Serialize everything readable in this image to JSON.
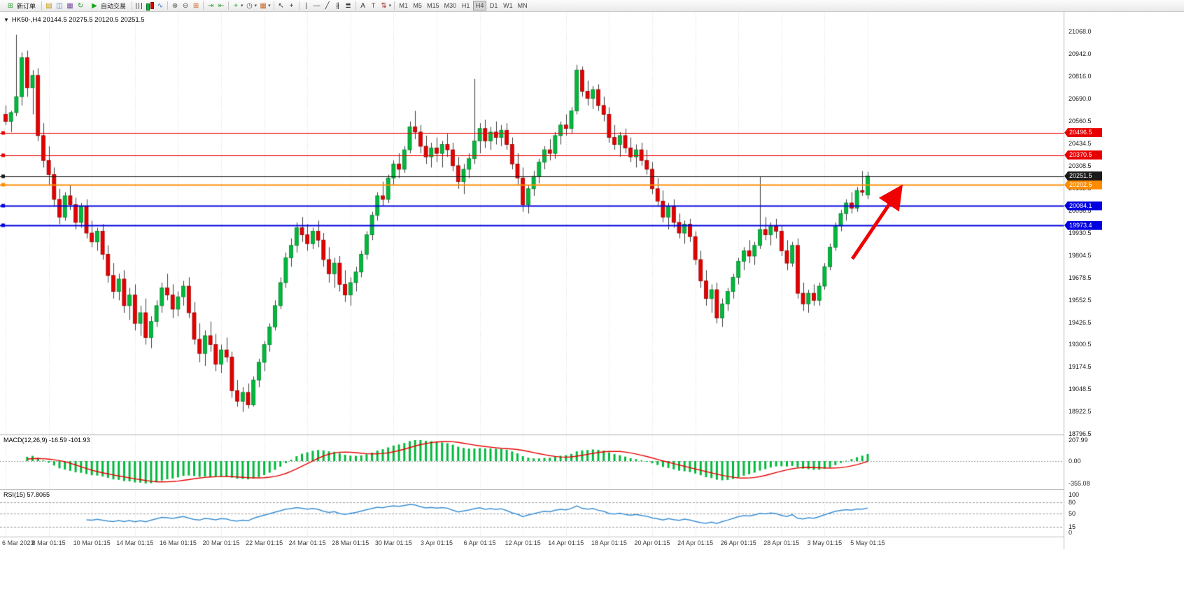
{
  "toolbar": {
    "groups": [
      {
        "items": [
          {
            "name": "new-order-button",
            "label": "新订单",
            "glyph": "⊞",
            "gcolor": "#2e9e2e"
          }
        ]
      },
      {
        "items": [
          {
            "name": "market-watch-icon",
            "glyph": "▤",
            "color": "#c79810"
          },
          {
            "name": "data-window-icon",
            "glyph": "◫",
            "color": "#3b6fc9"
          },
          {
            "name": "navigator-icon",
            "glyph": "▦",
            "color": "#7a52a8"
          },
          {
            "name": "refresh-icon",
            "glyph": "↻",
            "color": "#2e9e2e"
          },
          {
            "name": "autotrading-button",
            "label": "自动交易",
            "glyph": "▶",
            "gcolor": "#18a818"
          }
        ]
      },
      {
        "items": [
          {
            "name": "bar-chart-icon",
            "type": "bars"
          },
          {
            "name": "candlestick-chart-icon",
            "type": "candles"
          },
          {
            "name": "line-chart-icon",
            "glyph": "∿",
            "color": "#3b6fc9"
          }
        ]
      },
      {
        "items": [
          {
            "name": "zoom-in-icon",
            "glyph": "⊕",
            "color": "#555555"
          },
          {
            "name": "zoom-out-icon",
            "glyph": "⊖",
            "color": "#555555"
          },
          {
            "name": "tile-windows-icon",
            "glyph": "⊞",
            "color": "#c96a2a"
          }
        ]
      },
      {
        "items": [
          {
            "name": "auto-scroll-icon",
            "glyph": "⇥",
            "color": "#2e9e2e"
          },
          {
            "name": "chart-shift-icon",
            "glyph": "⇤",
            "color": "#2e9e2e"
          }
        ]
      },
      {
        "items": [
          {
            "name": "indicators-button",
            "glyph": "+",
            "color": "#18a818",
            "dropdown": true
          },
          {
            "name": "periods-button",
            "glyph": "◷",
            "color": "#555555",
            "dropdown": true
          },
          {
            "name": "templates-button",
            "glyph": "▦",
            "color": "#c96a2a",
            "dropdown": true
          }
        ]
      },
      {
        "items": [
          {
            "name": "cursor-icon",
            "glyph": "↖",
            "color": "#333333"
          },
          {
            "name": "crosshair-icon",
            "glyph": "+",
            "color": "#333333"
          }
        ]
      },
      {
        "items": [
          {
            "name": "vertical-line-icon",
            "glyph": "|",
            "color": "#333333"
          },
          {
            "name": "horizontal-line-icon",
            "glyph": "—",
            "color": "#333333"
          },
          {
            "name": "trendline-icon",
            "glyph": "╱",
            "color": "#333333"
          },
          {
            "name": "channel-icon",
            "glyph": "∦",
            "color": "#333333"
          },
          {
            "name": "fibonacci-icon",
            "glyph": "≣",
            "color": "#333333"
          }
        ]
      },
      {
        "items": [
          {
            "name": "text-icon",
            "glyph": "A",
            "color": "#333333"
          },
          {
            "name": "label-icon",
            "glyph": "T",
            "color": "#8a5a2a"
          },
          {
            "name": "arrows-icon",
            "glyph": "⇅",
            "color": "#aa3333",
            "dropdown": true
          }
        ]
      }
    ],
    "timeframes": [
      "M1",
      "M5",
      "M15",
      "M30",
      "H1",
      "H4",
      "D1",
      "W1",
      "MN"
    ],
    "active_timeframe": "H4"
  },
  "chart": {
    "collapse_glyph": "▼",
    "title": "HK50-,H4 20144.5 20275.5 20120.5 20251.5",
    "symbol": "HK50-",
    "period": "H4",
    "ohlc": {
      "open": 20144.5,
      "high": 20275.5,
      "low": 20120.5,
      "close": 20251.5
    },
    "price_min": 18796.5,
    "price_max": 21068.0,
    "price_axis": [
      "21068.0",
      "20942.0",
      "20816.0",
      "20690.0",
      "20560.5",
      "20434.5",
      "20308.5",
      "20182.5",
      "20056.5",
      "19930.5",
      "19804.5",
      "19678.5",
      "19552.5",
      "19426.5",
      "19300.5",
      "19174.5",
      "19048.5",
      "18922.5",
      "18796.5"
    ],
    "levels": [
      {
        "value": 20496.5,
        "label": "20496.5",
        "color": "#e80000",
        "width": 1
      },
      {
        "value": 20370.5,
        "label": "20370.5",
        "color": "#e80000",
        "width": 1
      },
      {
        "value": 20251.5,
        "label": "20251.5",
        "color": "#1a1a1a",
        "width": 1
      },
      {
        "value": 20202.5,
        "label": "20202.5",
        "color": "#ff8c00",
        "width": 2
      },
      {
        "value": 20084.1,
        "label": "20084.1",
        "color": "#0000e0",
        "width": 2
      },
      {
        "value": 19973.4,
        "label": "19973.4",
        "color": "#0000e0",
        "width": 2
      }
    ],
    "time_axis": [
      "6 Mar 2023",
      "8 Mar 01:15",
      "10 Mar 01:15",
      "14 Mar 01:15",
      "16 Mar 01:15",
      "20 Mar 01:15",
      "22 Mar 01:15",
      "24 Mar 01:15",
      "28 Mar 01:15",
      "30 Mar 01:15",
      "3 Apr 01:15",
      "6 Apr 01:15",
      "12 Apr 01:15",
      "14 Apr 01:15",
      "18 Apr 01:15",
      "20 Apr 01:15",
      "24 Apr 01:15",
      "26 Apr 01:15",
      "28 Apr 01:15",
      "3 May 01:15",
      "5 May 01:15"
    ],
    "colors": {
      "up": "#00b93c",
      "up_border": "#00822a",
      "down": "#e60000",
      "down_border": "#990000",
      "wick": "#3a3a3a",
      "grid": "#d9d9d9"
    },
    "candles": [
      [
        20600,
        20650,
        20540,
        20560
      ],
      [
        20560,
        20620,
        20500,
        20610
      ],
      [
        20610,
        21050,
        20590,
        20700
      ],
      [
        20700,
        20950,
        20650,
        20920
      ],
      [
        20920,
        20960,
        20700,
        20750
      ],
      [
        20750,
        20850,
        20600,
        20820
      ],
      [
        20820,
        20860,
        20450,
        20480
      ],
      [
        20480,
        20550,
        20300,
        20340
      ],
      [
        20340,
        20420,
        20200,
        20260
      ],
      [
        20260,
        20300,
        20080,
        20120
      ],
      [
        20120,
        20180,
        19980,
        20020
      ],
      [
        20020,
        20160,
        20000,
        20140
      ],
      [
        20140,
        20200,
        20060,
        20090
      ],
      [
        20090,
        20130,
        19950,
        19990
      ],
      [
        19990,
        20100,
        19960,
        20080
      ],
      [
        20080,
        20120,
        19900,
        19930
      ],
      [
        19930,
        20000,
        19850,
        19880
      ],
      [
        19880,
        19960,
        19830,
        19940
      ],
      [
        19940,
        19980,
        19780,
        19810
      ],
      [
        19810,
        19860,
        19650,
        19690
      ],
      [
        19690,
        19760,
        19560,
        19600
      ],
      [
        19600,
        19700,
        19550,
        19670
      ],
      [
        19670,
        19720,
        19480,
        19520
      ],
      [
        19520,
        19620,
        19440,
        19580
      ],
      [
        19580,
        19640,
        19380,
        19420
      ],
      [
        19420,
        19520,
        19350,
        19480
      ],
      [
        19480,
        19560,
        19300,
        19340
      ],
      [
        19340,
        19460,
        19280,
        19430
      ],
      [
        19430,
        19550,
        19400,
        19520
      ],
      [
        19520,
        19650,
        19480,
        19620
      ],
      [
        19620,
        19700,
        19550,
        19580
      ],
      [
        19580,
        19640,
        19450,
        19500
      ],
      [
        19500,
        19600,
        19460,
        19570
      ],
      [
        19570,
        19660,
        19520,
        19630
      ],
      [
        19630,
        19680,
        19450,
        19480
      ],
      [
        19480,
        19540,
        19300,
        19330
      ],
      [
        19330,
        19420,
        19200,
        19250
      ],
      [
        19250,
        19380,
        19180,
        19350
      ],
      [
        19350,
        19430,
        19260,
        19300
      ],
      [
        19300,
        19360,
        19150,
        19190
      ],
      [
        19190,
        19300,
        19140,
        19270
      ],
      [
        19270,
        19340,
        19200,
        19230
      ],
      [
        19230,
        19260,
        19000,
        19040
      ],
      [
        19040,
        19100,
        18950,
        18980
      ],
      [
        18980,
        19060,
        18920,
        19030
      ],
      [
        19030,
        19080,
        18940,
        18960
      ],
      [
        18960,
        19120,
        18950,
        19100
      ],
      [
        19100,
        19220,
        19060,
        19200
      ],
      [
        19200,
        19320,
        19150,
        19300
      ],
      [
        19300,
        19420,
        19260,
        19400
      ],
      [
        19400,
        19550,
        19380,
        19520
      ],
      [
        19520,
        19680,
        19500,
        19650
      ],
      [
        19650,
        19820,
        19620,
        19790
      ],
      [
        19790,
        19900,
        19740,
        19860
      ],
      [
        19860,
        19990,
        19820,
        19960
      ],
      [
        19960,
        20020,
        19880,
        19920
      ],
      [
        19920,
        19980,
        19830,
        19870
      ],
      [
        19870,
        19960,
        19840,
        19940
      ],
      [
        19940,
        20000,
        19850,
        19890
      ],
      [
        19890,
        19930,
        19740,
        19780
      ],
      [
        19780,
        19850,
        19650,
        19700
      ],
      [
        19700,
        19790,
        19620,
        19760
      ],
      [
        19760,
        19800,
        19600,
        19640
      ],
      [
        19640,
        19720,
        19540,
        19580
      ],
      [
        19580,
        19680,
        19520,
        19650
      ],
      [
        19650,
        19740,
        19600,
        19710
      ],
      [
        19710,
        19830,
        19680,
        19810
      ],
      [
        19810,
        19940,
        19780,
        19920
      ],
      [
        19920,
        20050,
        19890,
        20030
      ],
      [
        20030,
        20160,
        20000,
        20140
      ],
      [
        20140,
        20220,
        20080,
        20120
      ],
      [
        20120,
        20260,
        20100,
        20240
      ],
      [
        20240,
        20340,
        20200,
        20320
      ],
      [
        20320,
        20380,
        20240,
        20290
      ],
      [
        20290,
        20420,
        20270,
        20400
      ],
      [
        20400,
        20560,
        20380,
        20530
      ],
      [
        20530,
        20620,
        20460,
        20500
      ],
      [
        20500,
        20540,
        20380,
        20420
      ],
      [
        20420,
        20480,
        20320,
        20360
      ],
      [
        20360,
        20440,
        20300,
        20410
      ],
      [
        20410,
        20470,
        20330,
        20380
      ],
      [
        20380,
        20450,
        20300,
        20430
      ],
      [
        20430,
        20490,
        20360,
        20400
      ],
      [
        20400,
        20440,
        20280,
        20310
      ],
      [
        20310,
        20360,
        20180,
        20220
      ],
      [
        20220,
        20320,
        20150,
        20290
      ],
      [
        20290,
        20380,
        20240,
        20350
      ],
      [
        20350,
        20800,
        20320,
        20450
      ],
      [
        20450,
        20550,
        20380,
        20520
      ],
      [
        20520,
        20570,
        20410,
        20450
      ],
      [
        20450,
        20530,
        20400,
        20500
      ],
      [
        20500,
        20560,
        20430,
        20470
      ],
      [
        20470,
        20540,
        20420,
        20510
      ],
      [
        20510,
        20550,
        20400,
        20430
      ],
      [
        20430,
        20470,
        20290,
        20320
      ],
      [
        20320,
        20380,
        20200,
        20240
      ],
      [
        20240,
        20300,
        20050,
        20090
      ],
      [
        20090,
        20200,
        20040,
        20180
      ],
      [
        20180,
        20280,
        20140,
        20250
      ],
      [
        20250,
        20350,
        20210,
        20330
      ],
      [
        20330,
        20420,
        20290,
        20400
      ],
      [
        20400,
        20460,
        20340,
        20380
      ],
      [
        20380,
        20500,
        20350,
        20480
      ],
      [
        20480,
        20560,
        20430,
        20540
      ],
      [
        20540,
        20600,
        20480,
        20520
      ],
      [
        20520,
        20640,
        20490,
        20620
      ],
      [
        20620,
        20880,
        20600,
        20850
      ],
      [
        20850,
        20870,
        20700,
        20730
      ],
      [
        20730,
        20790,
        20650,
        20690
      ],
      [
        20690,
        20760,
        20630,
        20740
      ],
      [
        20740,
        20770,
        20620,
        20650
      ],
      [
        20650,
        20700,
        20560,
        20600
      ],
      [
        20600,
        20640,
        20440,
        20470
      ],
      [
        20470,
        20540,
        20400,
        20430
      ],
      [
        20430,
        20500,
        20360,
        20480
      ],
      [
        20480,
        20520,
        20380,
        20410
      ],
      [
        20410,
        20470,
        20330,
        20360
      ],
      [
        20360,
        20430,
        20300,
        20400
      ],
      [
        20400,
        20440,
        20310,
        20340
      ],
      [
        20340,
        20400,
        20260,
        20290
      ],
      [
        20290,
        20330,
        20150,
        20180
      ],
      [
        20180,
        20240,
        20080,
        20110
      ],
      [
        20110,
        20170,
        19990,
        20020
      ],
      [
        20020,
        20100,
        19950,
        20080
      ],
      [
        20080,
        20120,
        19960,
        19990
      ],
      [
        19990,
        20040,
        19900,
        19930
      ],
      [
        19930,
        20000,
        19870,
        19980
      ],
      [
        19980,
        20010,
        19880,
        19910
      ],
      [
        19910,
        19940,
        19750,
        19780
      ],
      [
        19780,
        19830,
        19620,
        19660
      ],
      [
        19660,
        19720,
        19520,
        19560
      ],
      [
        19560,
        19640,
        19480,
        19610
      ],
      [
        19610,
        19650,
        19420,
        19450
      ],
      [
        19450,
        19560,
        19400,
        19530
      ],
      [
        19530,
        19620,
        19490,
        19600
      ],
      [
        19600,
        19700,
        19560,
        19680
      ],
      [
        19680,
        19790,
        19640,
        19770
      ],
      [
        19770,
        19850,
        19720,
        19830
      ],
      [
        19830,
        19890,
        19760,
        19800
      ],
      [
        19800,
        19880,
        19750,
        19860
      ],
      [
        19860,
        20250,
        19840,
        19950
      ],
      [
        19950,
        20020,
        19890,
        19920
      ],
      [
        19920,
        19990,
        19860,
        19970
      ],
      [
        19970,
        20010,
        19900,
        19940
      ],
      [
        19940,
        19970,
        19800,
        19830
      ],
      [
        19830,
        19890,
        19720,
        19760
      ],
      [
        19760,
        19880,
        19740,
        19860
      ],
      [
        19860,
        19900,
        19560,
        19590
      ],
      [
        19590,
        19650,
        19490,
        19530
      ],
      [
        19530,
        19610,
        19480,
        19590
      ],
      [
        19590,
        19640,
        19520,
        19550
      ],
      [
        19550,
        19650,
        19520,
        19630
      ],
      [
        19630,
        19760,
        19610,
        19740
      ],
      [
        19740,
        19870,
        19720,
        19850
      ],
      [
        19850,
        19990,
        19830,
        19970
      ],
      [
        19970,
        20060,
        19940,
        20040
      ],
      [
        20040,
        20120,
        20000,
        20100
      ],
      [
        20100,
        20160,
        20040,
        20070
      ],
      [
        20070,
        20190,
        20050,
        20170
      ],
      [
        20170,
        20280,
        20140,
        20160
      ],
      [
        20144.5,
        20275.5,
        20120.5,
        20251.5
      ]
    ]
  },
  "macd": {
    "label": "MACD(12,26,9) -16.59 -101.93",
    "params": {
      "fast": 12,
      "slow": 26,
      "signal": 9
    },
    "values": {
      "main": -16.59,
      "signal": -101.93
    },
    "axis": [
      "207.99",
      "0.00",
      "-355.08"
    ],
    "colors": {
      "histogram": "#00b93c",
      "signal": "#e60000"
    }
  },
  "rsi": {
    "label": "RSI(15) 57.8065",
    "period": 15,
    "value": 57.8065,
    "axis": [
      "100",
      "80",
      "50",
      "15",
      "0"
    ],
    "levels": [
      80,
      50,
      15
    ],
    "color": "#3b8fd4"
  },
  "annotation": {
    "type": "arrow",
    "color": "#f00000"
  }
}
